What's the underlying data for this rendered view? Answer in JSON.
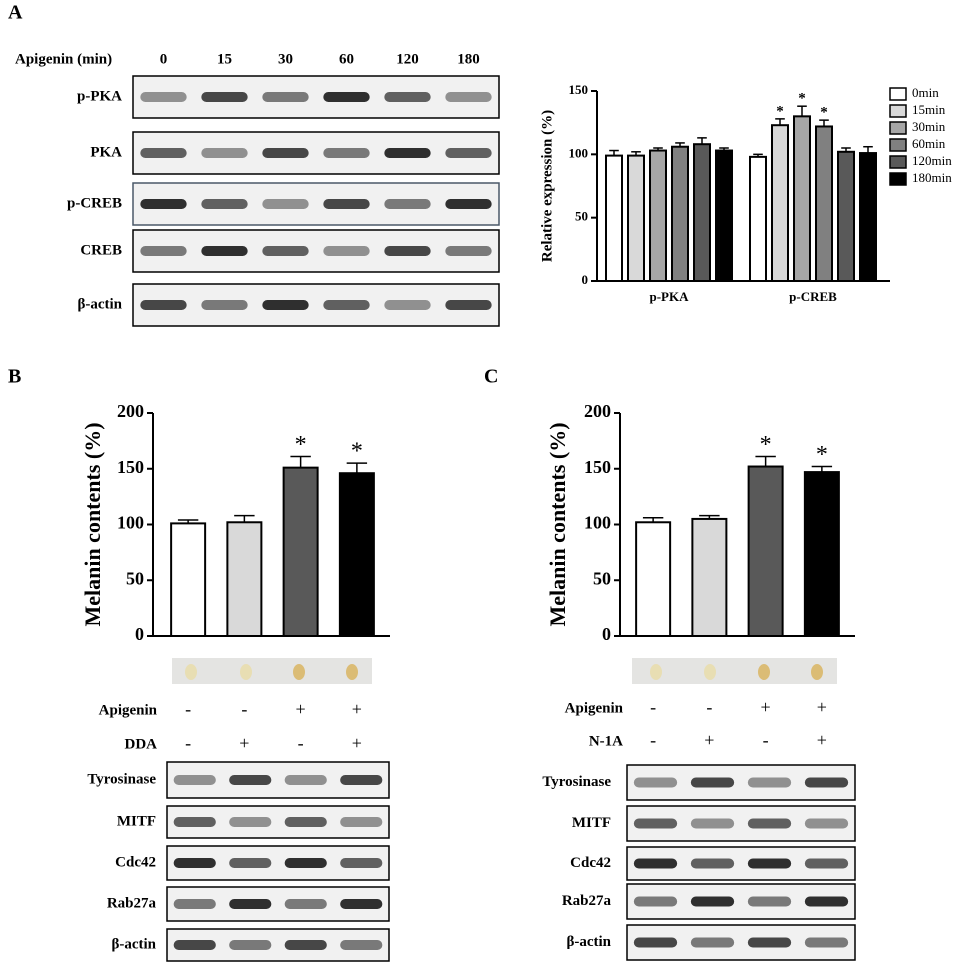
{
  "panels": [
    "A",
    "B",
    "C"
  ],
  "blots": {
    "A": {
      "header": "Apigenin (min)",
      "lanes": [
        "0",
        "15",
        "30",
        "60",
        "120",
        "180"
      ],
      "rows": [
        "p-PKA",
        "PKA",
        "p-CREB",
        "CREB",
        "β-actin"
      ]
    },
    "B": {
      "rows": [
        "Tyrosinase",
        "MITF",
        "Cdc42",
        "Rab27a",
        "β-actin"
      ]
    },
    "C": {
      "rows": [
        "Tyrosinase",
        "MITF",
        "Cdc42",
        "Rab27a",
        "β-actin"
      ]
    }
  },
  "chart_data": [
    {
      "type": "grouped-bar",
      "ylabel": "Relative expression (%)",
      "categories": [
        "p-PKA",
        "p-CREB"
      ],
      "series": [
        {
          "name": "0min",
          "color": "#ffffff",
          "values": [
            99,
            98
          ],
          "errors": [
            4,
            2
          ]
        },
        {
          "name": "15min",
          "color": "#d9d9d9",
          "values": [
            99,
            123
          ],
          "errors": [
            3,
            5
          ]
        },
        {
          "name": "30min",
          "color": "#a6a6a6",
          "values": [
            103,
            130
          ],
          "errors": [
            2,
            8
          ]
        },
        {
          "name": "60min",
          "color": "#808080",
          "values": [
            106,
            122
          ],
          "errors": [
            3,
            5
          ]
        },
        {
          "name": "120min",
          "color": "#595959",
          "values": [
            108,
            102
          ],
          "errors": [
            5,
            3
          ]
        },
        {
          "name": "180min",
          "color": "#000000",
          "values": [
            103,
            101
          ],
          "errors": [
            2,
            5
          ]
        }
      ],
      "annotations": [
        {
          "text": "*",
          "series": 1,
          "category": 1
        },
        {
          "text": "*",
          "series": 2,
          "category": 1
        },
        {
          "text": "*",
          "series": 3,
          "category": 1
        }
      ],
      "ylim": [
        0,
        150
      ],
      "yticks": [
        0,
        50,
        100,
        150
      ],
      "legend": "right"
    },
    {
      "type": "bar",
      "ylabel": "Melanin contents (%)",
      "categories": [
        null,
        null,
        null,
        null
      ],
      "values": [
        101,
        102,
        151,
        146
      ],
      "errors": [
        3,
        6,
        10,
        9
      ],
      "colors": [
        "#ffffff",
        "#d9d9d9",
        "#595959",
        "#000000"
      ],
      "annotations": [
        {
          "text": "*",
          "index": 2
        },
        {
          "text": "*",
          "index": 3
        }
      ],
      "ylim": [
        0,
        200
      ],
      "yticks": [
        0,
        50,
        100,
        150,
        200
      ],
      "conditions": [
        {
          "name": "Apigenin",
          "values": [
            "-",
            "-",
            "+",
            "+"
          ]
        },
        {
          "name": "DDA",
          "values": [
            "-",
            "+",
            "-",
            "+"
          ]
        }
      ]
    },
    {
      "type": "bar",
      "ylabel": "Melanin contents (%)",
      "categories": [
        null,
        null,
        null,
        null
      ],
      "values": [
        102,
        105,
        152,
        147
      ],
      "errors": [
        4,
        3,
        9,
        5
      ],
      "colors": [
        "#ffffff",
        "#d9d9d9",
        "#595959",
        "#000000"
      ],
      "annotations": [
        {
          "text": "*",
          "index": 2
        },
        {
          "text": "*",
          "index": 3
        }
      ],
      "ylim": [
        0,
        200
      ],
      "yticks": [
        0,
        50,
        100,
        150,
        200
      ],
      "conditions": [
        {
          "name": "Apigenin",
          "values": [
            "-",
            "-",
            "+",
            "+"
          ]
        },
        {
          "name": "N-1A",
          "values": [
            "-",
            "+",
            "-",
            "+"
          ]
        }
      ]
    }
  ]
}
